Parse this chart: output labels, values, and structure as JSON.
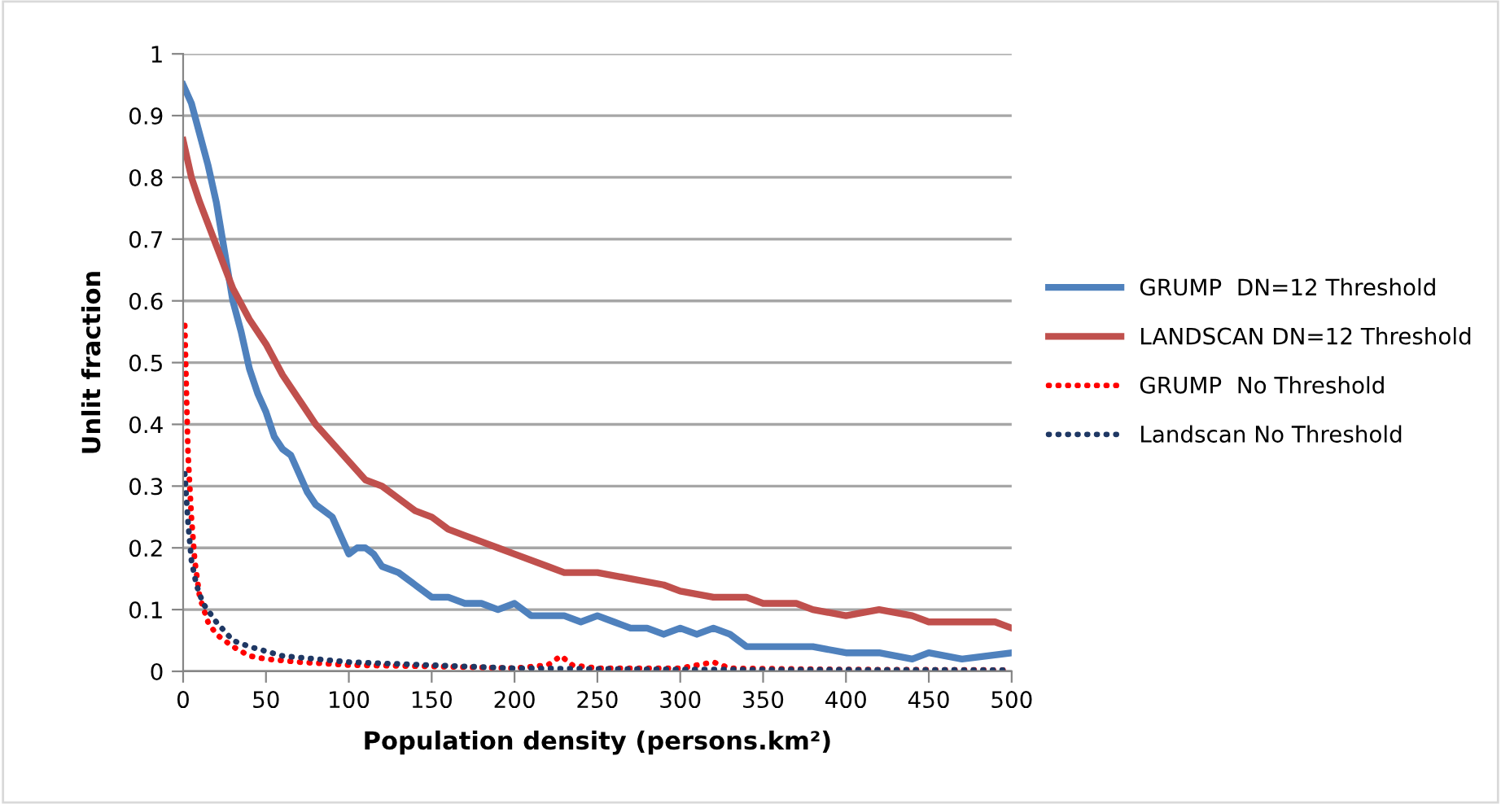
{
  "chart_data": {
    "type": "line",
    "xlabel": "Population density (persons.km²)",
    "ylabel": "Unlit fraction",
    "xlim": [
      0,
      500
    ],
    "xticks": [
      0,
      50,
      100,
      150,
      200,
      250,
      300,
      350,
      400,
      450,
      500
    ],
    "ylim": [
      0,
      1
    ],
    "yticks": [
      0,
      0.1,
      0.2,
      0.3,
      0.4,
      0.5,
      0.6,
      0.7,
      0.8,
      0.9,
      1
    ],
    "grid": "y",
    "legend": "right",
    "marker": "none",
    "series": [
      {
        "name": "GRUMP  DN=12 Threshold",
        "color": "#4f81bd",
        "line_style": "solid",
        "x": [
          0,
          5,
          10,
          15,
          20,
          25,
          30,
          35,
          40,
          45,
          50,
          55,
          60,
          65,
          70,
          75,
          80,
          85,
          90,
          95,
          100,
          105,
          110,
          115,
          120,
          130,
          140,
          150,
          160,
          170,
          180,
          190,
          200,
          210,
          220,
          230,
          240,
          250,
          260,
          270,
          280,
          290,
          300,
          310,
          320,
          330,
          340,
          350,
          360,
          380,
          400,
          420,
          440,
          450,
          470,
          500
        ],
        "values": [
          0.95,
          0.92,
          0.87,
          0.82,
          0.76,
          0.68,
          0.6,
          0.55,
          0.49,
          0.45,
          0.42,
          0.38,
          0.36,
          0.35,
          0.32,
          0.29,
          0.27,
          0.26,
          0.25,
          0.22,
          0.19,
          0.2,
          0.2,
          0.19,
          0.17,
          0.16,
          0.14,
          0.12,
          0.12,
          0.11,
          0.11,
          0.1,
          0.11,
          0.09,
          0.09,
          0.09,
          0.08,
          0.09,
          0.08,
          0.07,
          0.07,
          0.06,
          0.07,
          0.06,
          0.07,
          0.06,
          0.04,
          0.04,
          0.04,
          0.04,
          0.03,
          0.03,
          0.02,
          0.03,
          0.02,
          0.03
        ]
      },
      {
        "name": "LANDSCAN DN=12 Threshold",
        "color": "#c0504d",
        "line_style": "solid",
        "x": [
          0,
          5,
          10,
          20,
          30,
          40,
          50,
          60,
          70,
          80,
          90,
          100,
          110,
          120,
          130,
          140,
          150,
          160,
          170,
          180,
          190,
          200,
          220,
          230,
          250,
          270,
          290,
          300,
          320,
          340,
          350,
          370,
          380,
          400,
          420,
          440,
          450,
          470,
          490,
          500
        ],
        "values": [
          0.86,
          0.8,
          0.76,
          0.69,
          0.62,
          0.57,
          0.53,
          0.48,
          0.44,
          0.4,
          0.37,
          0.34,
          0.31,
          0.3,
          0.28,
          0.26,
          0.25,
          0.23,
          0.22,
          0.21,
          0.2,
          0.19,
          0.17,
          0.16,
          0.16,
          0.15,
          0.14,
          0.13,
          0.12,
          0.12,
          0.11,
          0.11,
          0.1,
          0.09,
          0.1,
          0.09,
          0.08,
          0.08,
          0.08,
          0.07
        ]
      },
      {
        "name": "GRUMP  No Threshold",
        "color": "#ff0000",
        "line_style": "dotted",
        "x": [
          1,
          2,
          3,
          5,
          7,
          10,
          15,
          20,
          30,
          40,
          50,
          70,
          100,
          150,
          200,
          220,
          228,
          235,
          250,
          300,
          320,
          330,
          400,
          500
        ],
        "values": [
          0.56,
          0.45,
          0.35,
          0.25,
          0.18,
          0.12,
          0.08,
          0.06,
          0.04,
          0.025,
          0.02,
          0.015,
          0.01,
          0.008,
          0.005,
          0.01,
          0.025,
          0.01,
          0.005,
          0.005,
          0.015,
          0.005,
          0.003,
          0.002
        ]
      },
      {
        "name": "Landscan No Threshold",
        "color": "#1f3864",
        "line_style": "dotted",
        "x": [
          1,
          3,
          5,
          8,
          12,
          20,
          30,
          40,
          60,
          80,
          100,
          150,
          200,
          300,
          500
        ],
        "values": [
          0.32,
          0.24,
          0.18,
          0.14,
          0.11,
          0.08,
          0.05,
          0.04,
          0.025,
          0.02,
          0.015,
          0.01,
          0.005,
          0.003,
          0.002
        ]
      }
    ]
  }
}
